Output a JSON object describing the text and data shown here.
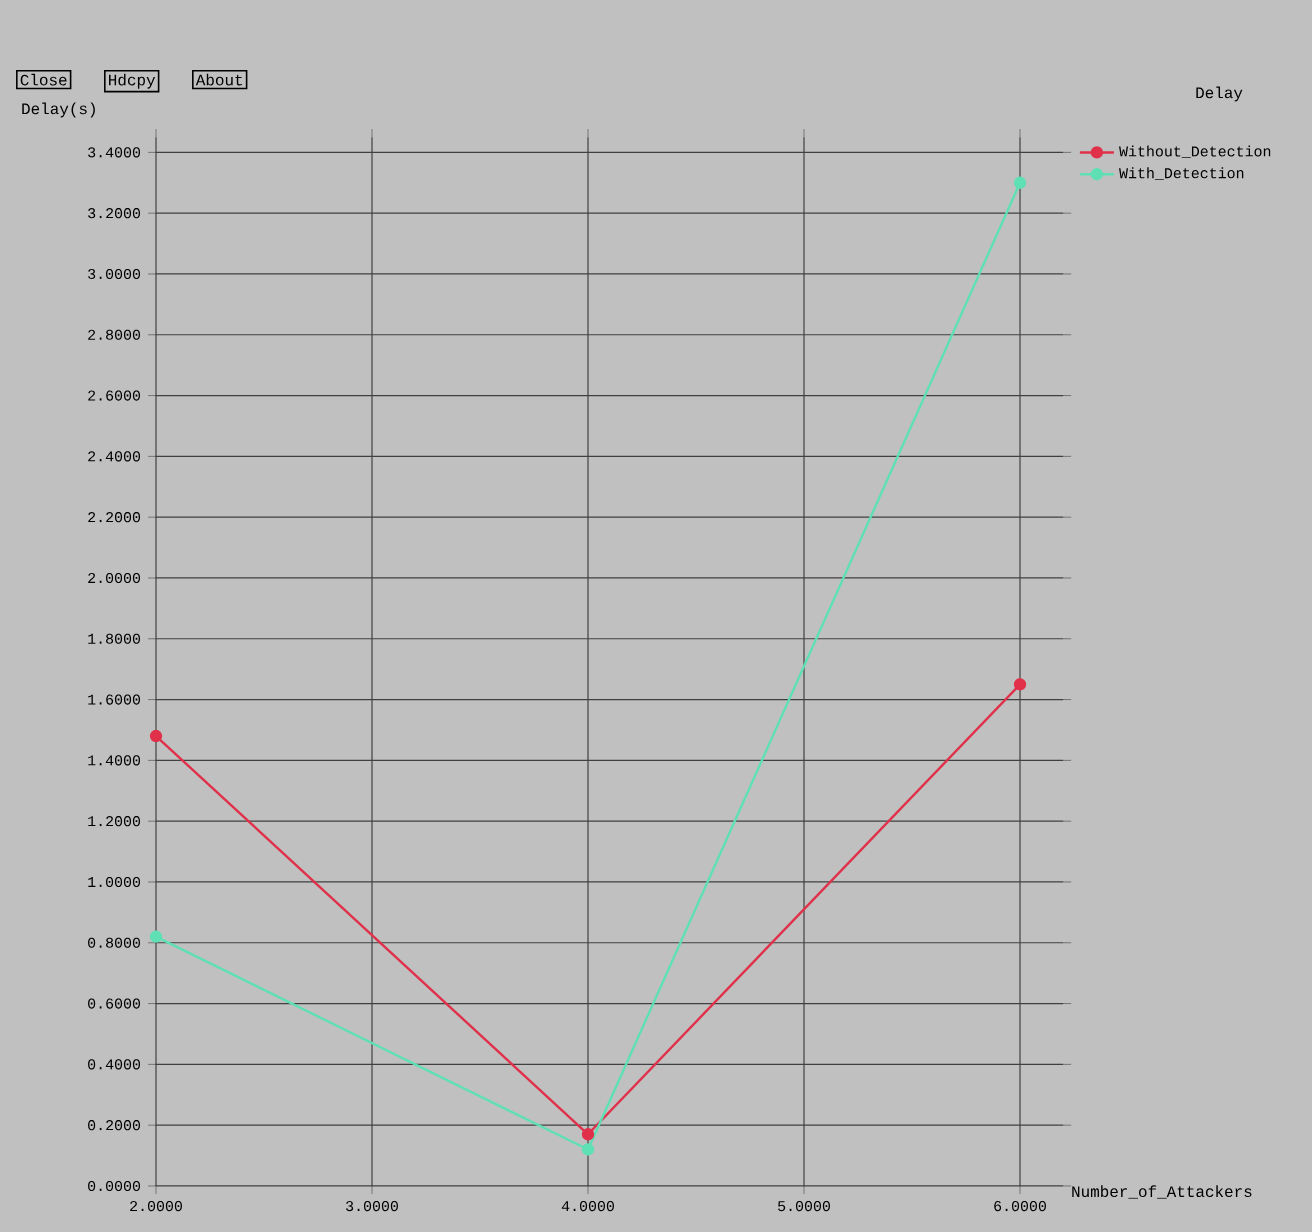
{
  "chart_data": {
    "type": "line",
    "title": "Delay",
    "xlabel": "Number_of_Attackers",
    "ylabel": "Delay(s)",
    "annotations": [
      "Close",
      "Hdcpy",
      "About"
    ],
    "x": [
      2,
      4,
      6
    ],
    "series": [
      {
        "name": "Without_Detection",
        "color": "#e0304a",
        "values": [
          1.48,
          0.17,
          1.65
        ]
      },
      {
        "name": "With_Detection",
        "color": "#5fe0b4",
        "values": [
          0.82,
          0.12,
          3.3
        ]
      }
    ],
    "xlim": [
      2,
      6.2
    ],
    "ylim": [
      0,
      3.45
    ],
    "xticks": [
      {
        "value": 2,
        "label": "2.0000"
      },
      {
        "value": 3,
        "label": "3.0000"
      },
      {
        "value": 4,
        "label": "4.0000"
      },
      {
        "value": 5,
        "label": "5.0000"
      },
      {
        "value": 6,
        "label": "6.0000"
      }
    ],
    "yticks": [
      {
        "value": 0,
        "label": "0.0000"
      },
      {
        "value": 0.2,
        "label": "0.2000"
      },
      {
        "value": 0.4,
        "label": "0.4000"
      },
      {
        "value": 0.6,
        "label": "0.6000"
      },
      {
        "value": 0.8,
        "label": "0.8000"
      },
      {
        "value": 1,
        "label": "1.0000"
      },
      {
        "value": 1.2,
        "label": "1.2000"
      },
      {
        "value": 1.4,
        "label": "1.4000"
      },
      {
        "value": 1.6,
        "label": "1.6000"
      },
      {
        "value": 1.8,
        "label": "1.8000"
      },
      {
        "value": 2,
        "label": "2.0000"
      },
      {
        "value": 2.2,
        "label": "2.2000"
      },
      {
        "value": 2.4,
        "label": "2.4000"
      },
      {
        "value": 2.6,
        "label": "2.6000"
      },
      {
        "value": 2.8,
        "label": "2.8000"
      },
      {
        "value": 3,
        "label": "3.0000"
      },
      {
        "value": 3.2,
        "label": "3.2000"
      },
      {
        "value": 3.4,
        "label": "3.4000"
      }
    ],
    "grid": true,
    "legend": "top right",
    "marker": "circle"
  }
}
